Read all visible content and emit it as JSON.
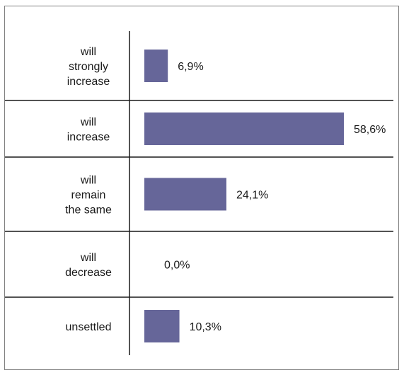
{
  "chart_data": {
    "type": "bar",
    "orientation": "horizontal",
    "categories": [
      [
        "will",
        "strongly",
        "increase"
      ],
      [
        "will",
        "increase"
      ],
      [
        "will",
        "remain",
        "the same"
      ],
      [
        "will",
        "decrease"
      ],
      [
        "unsettled"
      ]
    ],
    "values": [
      6.9,
      58.6,
      24.1,
      0.0,
      10.3
    ],
    "value_labels": [
      "6,9%",
      "58,6%",
      "24,1%",
      "0,0%",
      "10,3%"
    ],
    "xlim": [
      0,
      70
    ],
    "bar_color": "#666699",
    "grid": false,
    "legend": "none"
  }
}
